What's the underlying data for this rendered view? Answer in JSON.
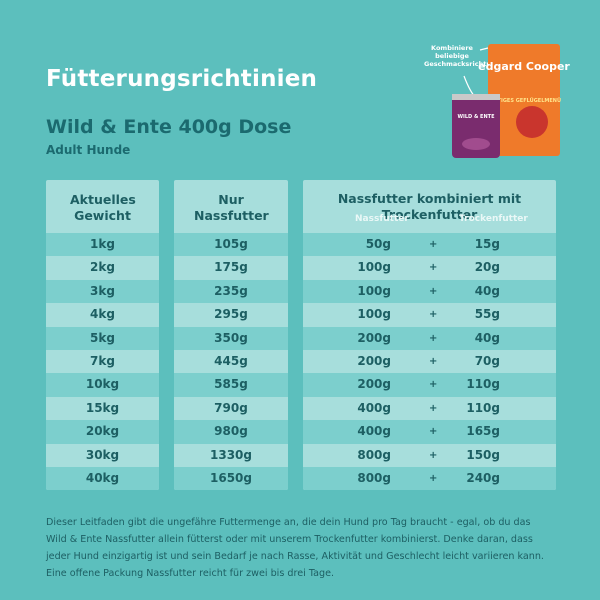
{
  "header": {
    "title": "Fütterungsrichtinien",
    "product": "Wild & Ente 400g Dose",
    "audience": "Adult Hunde"
  },
  "promo": {
    "note": "Kombiniere beliebige Geschmacksrichtungen!",
    "brand": "edgard Cooper",
    "bag_label": "SATTIGES GEFLÜGELMENÜ",
    "can_label": "WILD & ENTE"
  },
  "table": {
    "headers": [
      "Aktuelles Gewicht",
      "Nur Nassfutter",
      "Nassfutter kombiniert mit Trockenfutter"
    ],
    "subheaders": [
      "Nassfutter",
      "Trockenfutter"
    ],
    "separator": "+",
    "rows": [
      [
        "1kg",
        "105g",
        "50g",
        "15g"
      ],
      [
        "2kg",
        "175g",
        "100g",
        "20g"
      ],
      [
        "3kg",
        "235g",
        "100g",
        "40g"
      ],
      [
        "4kg",
        "295g",
        "100g",
        "55g"
      ],
      [
        "5kg",
        "350g",
        "200g",
        "40g"
      ],
      [
        "7kg",
        "445g",
        "200g",
        "70g"
      ],
      [
        "10kg",
        "585g",
        "200g",
        "110g"
      ],
      [
        "15kg",
        "790g",
        "400g",
        "110g"
      ],
      [
        "20kg",
        "980g",
        "400g",
        "165g"
      ],
      [
        "30kg",
        "1330g",
        "800g",
        "150g"
      ],
      [
        "40kg",
        "1650g",
        "800g",
        "240g"
      ]
    ]
  },
  "footer": [
    "Dieser Leitfaden gibt die ungefähre Futtermenge an, die dein Hund pro Tag braucht - egal, ob du das",
    "Wild & Ente Nassfutter allein fütterst oder mit unserem Trockenfutter kombinierst. Denke daran, dass",
    "jeder Hund einzigartig ist und sein Bedarf je nach Rasse, Aktivität und Geschlecht leicht variieren kann.",
    "Eine offene Packung Nassfutter reicht für zwei bis drei Tage."
  ]
}
